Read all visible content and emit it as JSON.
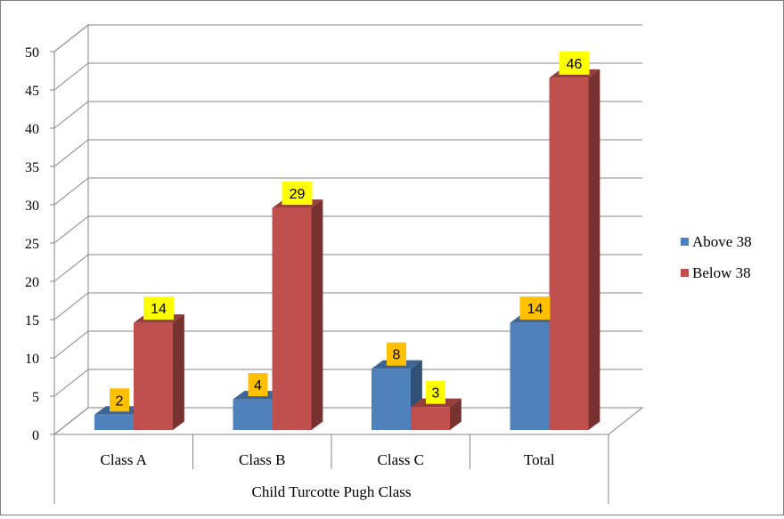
{
  "chart_data": {
    "type": "bar",
    "style": "3d-clustered-column",
    "title": "",
    "xlabel": "Child Turcotte Pugh Class",
    "ylabel": "",
    "ylim": [
      0,
      50
    ],
    "yticks": [
      "0",
      "5",
      "10",
      "15",
      "20",
      "25",
      "30",
      "35",
      "40",
      "45",
      "50"
    ],
    "categories": [
      "Class A",
      "Class B",
      "Class C",
      "Total"
    ],
    "series": [
      {
        "name": "Above 38",
        "values": [
          2,
          4,
          8,
          14
        ],
        "color": "#4f81bd",
        "label_bg": "#ffc000"
      },
      {
        "name": "Below 38",
        "values": [
          14,
          29,
          3,
          46
        ],
        "color": "#c0504d",
        "label_bg": "#ffff00"
      }
    ],
    "grid": true,
    "legend": "right"
  }
}
